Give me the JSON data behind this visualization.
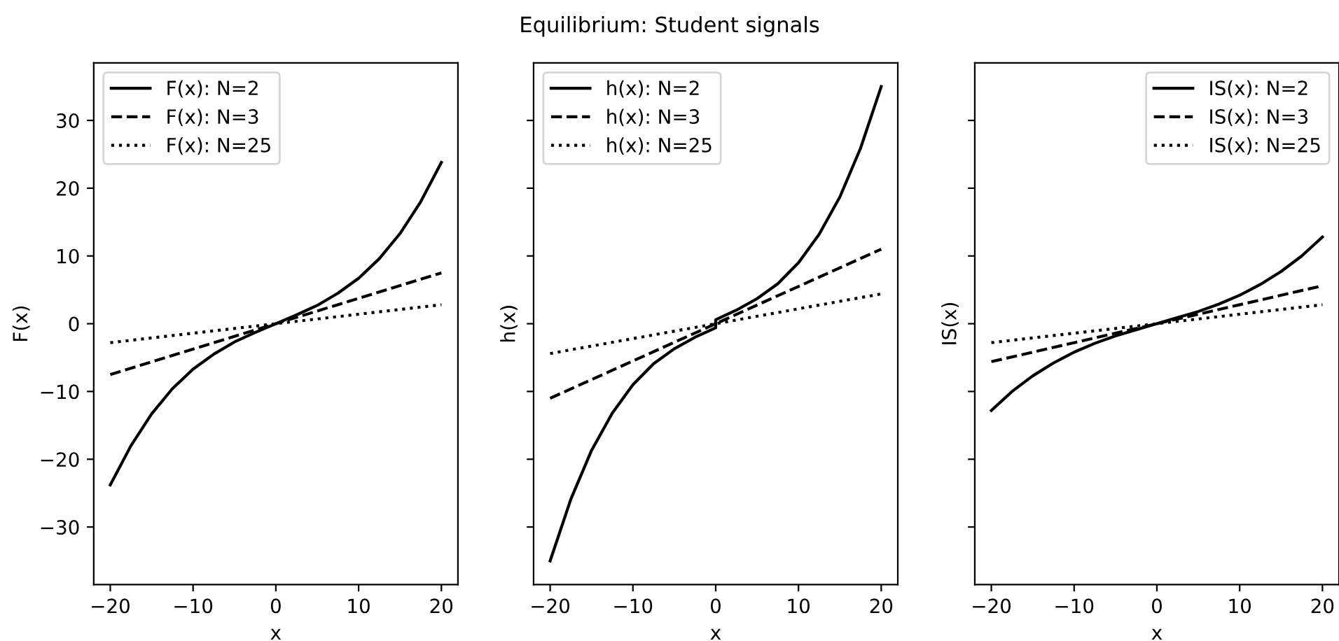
{
  "chart_data": [
    {
      "type": "line",
      "xlabel": "x",
      "ylabel": "F(x)",
      "xlim": [
        -22,
        22
      ],
      "xticks": [
        -20,
        -10,
        0,
        10,
        20
      ],
      "ylim": [
        -38.5,
        38.5
      ],
      "yticks": [
        -30,
        -20,
        -10,
        0,
        10,
        20,
        30
      ],
      "legend": "top left",
      "grid": false,
      "series": [
        {
          "name": "F(x): N=2",
          "color": "#000000",
          "line_style": "solid",
          "x": [
            -20,
            -17.5,
            -15,
            -12.5,
            -10,
            -7.5,
            -5,
            -2.5,
            0,
            2.5,
            5,
            7.5,
            10,
            12.5,
            15,
            17.5,
            20
          ],
          "values": [
            -23.8,
            -18,
            -13.3,
            -9.6,
            -6.7,
            -4.5,
            -2.7,
            -1.3,
            0,
            1.3,
            2.7,
            4.5,
            6.7,
            9.6,
            13.3,
            18,
            23.8
          ]
        },
        {
          "name": "F(x): N=3",
          "color": "#000000",
          "line_style": "dashed",
          "x": [
            -20,
            0,
            20
          ],
          "values": [
            -7.5,
            0,
            7.5
          ]
        },
        {
          "name": "F(x): N=25",
          "color": "#000000",
          "line_style": "dotted",
          "x": [
            -20,
            0,
            20
          ],
          "values": [
            -2.8,
            0,
            2.8
          ]
        }
      ]
    },
    {
      "type": "line",
      "title": "Equilibrium: Student signals",
      "xlabel": "x",
      "ylabel": "h(x)",
      "xlim": [
        -22,
        22
      ],
      "xticks": [
        -20,
        -10,
        0,
        10,
        20
      ],
      "ylim": [
        -38.5,
        38.5
      ],
      "yticks": [
        -30,
        -20,
        -10,
        0,
        10,
        20,
        30
      ],
      "tick_labels": "x",
      "legend": "top left",
      "grid": false,
      "series": [
        {
          "name": "h(x): N=2",
          "color": "#000000",
          "line_style": "solid",
          "x": [
            -20,
            -17.5,
            -15,
            -12.5,
            -10,
            -7.5,
            -5,
            -2.5,
            0,
            0,
            2.5,
            5,
            7.5,
            10,
            12.5,
            15,
            17.5,
            20
          ],
          "values": [
            -35,
            -25.9,
            -18.7,
            -13.2,
            -9,
            -5.9,
            -3.7,
            -2,
            -0.6,
            0.6,
            2,
            3.7,
            5.9,
            9,
            13.2,
            18.7,
            25.9,
            35
          ]
        },
        {
          "name": "h(x): N=3",
          "color": "#000000",
          "line_style": "dashed",
          "x": [
            -20,
            0,
            20
          ],
          "values": [
            -11,
            0,
            11
          ]
        },
        {
          "name": "h(x): N=25",
          "color": "#000000",
          "line_style": "dotted",
          "x": [
            -20,
            0,
            20
          ],
          "values": [
            -4.4,
            0,
            4.4
          ]
        }
      ]
    },
    {
      "type": "line",
      "xlabel": "x",
      "ylabel": "IS(x)",
      "xlim": [
        -22,
        22
      ],
      "xticks": [
        -20,
        -10,
        0,
        10,
        20
      ],
      "ylim": [
        -38.5,
        38.5
      ],
      "yticks": [
        -30,
        -20,
        -10,
        0,
        10,
        20,
        30
      ],
      "tick_labels": "x",
      "legend": "top right",
      "grid": false,
      "series": [
        {
          "name": "IS(x): N=2",
          "color": "#000000",
          "line_style": "solid",
          "x": [
            -20,
            -17.5,
            -15,
            -12.5,
            -10,
            -7.5,
            -5,
            -2.5,
            0,
            2.5,
            5,
            7.5,
            10,
            12.5,
            15,
            17.5,
            20
          ],
          "values": [
            -12.8,
            -10,
            -7.7,
            -5.8,
            -4.2,
            -2.9,
            -1.8,
            -0.9,
            0,
            0.9,
            1.8,
            2.9,
            4.2,
            5.8,
            7.7,
            10,
            12.8
          ]
        },
        {
          "name": "IS(x): N=3",
          "color": "#000000",
          "line_style": "dashed",
          "x": [
            -20,
            0,
            20
          ],
          "values": [
            -5.6,
            0,
            5.6
          ]
        },
        {
          "name": "IS(x): N=25",
          "color": "#000000",
          "line_style": "dotted",
          "x": [
            -20,
            0,
            20
          ],
          "values": [
            -2.8,
            0,
            2.8
          ]
        }
      ]
    }
  ]
}
